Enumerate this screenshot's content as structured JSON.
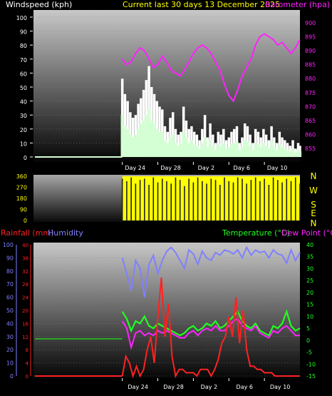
{
  "colors": {
    "wind_label": "#ffffff",
    "wind_gust": "#ffffff",
    "wind_avg": "#d4ffd4",
    "barometer": "#ff22ff",
    "title": "#ffff00",
    "direction": "#ffff00",
    "direction_letters": "#ffff00",
    "rainfall": "#ff2222",
    "humidity": "#8080ff",
    "temperature": "#22ff22",
    "dewpoint": "#ff22ff",
    "old_temp": "#22cc22"
  },
  "x_axis": {
    "start_day": 1,
    "end_day": 31,
    "ticks": [
      {
        "day": 11,
        "label": "Day 24"
      },
      {
        "day": 15,
        "label": "Day 28"
      },
      {
        "day": 19,
        "label": "Day 2"
      },
      {
        "day": 23,
        "label": "Day 6"
      },
      {
        "day": 27,
        "label": "Day 10"
      }
    ],
    "data_start_day": 11
  },
  "chart_data": [
    {
      "type": "area",
      "name": "wind-and-barometer",
      "title": "Current last 30 days 13 December 2025",
      "ylabel": "Windspeed (kph)",
      "ylabel_right": "Barometer (hpa)",
      "ylim": [
        0,
        100
      ],
      "yticks": [
        0,
        10,
        20,
        30,
        40,
        50,
        60,
        70,
        80,
        90,
        100
      ],
      "ylim_right": [
        852,
        902
      ],
      "yticks_right": [
        855,
        860,
        865,
        870,
        875,
        880,
        885,
        890,
        895,
        900
      ],
      "series": [
        {
          "name": "Gust",
          "x": [
            11.0,
            11.3,
            11.6,
            11.9,
            12.2,
            12.5,
            12.8,
            13.1,
            13.4,
            13.7,
            14.0,
            14.3,
            14.6,
            14.9,
            15.2,
            15.5,
            15.8,
            16.1,
            16.4,
            16.7,
            17.0,
            17.3,
            17.6,
            17.9,
            18.2,
            18.5,
            18.8,
            19.1,
            19.4,
            19.7,
            20.0,
            20.3,
            20.6,
            20.9,
            21.2,
            21.5,
            21.8,
            22.1,
            22.4,
            22.7,
            23.0,
            23.3,
            23.6,
            23.9,
            24.2,
            24.5,
            24.8,
            25.1,
            25.4,
            25.7,
            26.0,
            26.3,
            26.6,
            26.9,
            27.2,
            27.5,
            27.8,
            28.1,
            28.4,
            28.7,
            29.0,
            29.3,
            29.6,
            29.9,
            30.2,
            30.5,
            30.8,
            31.0
          ],
          "values": [
            56,
            45,
            40,
            32,
            28,
            30,
            38,
            42,
            48,
            55,
            65,
            50,
            45,
            40,
            36,
            34,
            22,
            18,
            28,
            32,
            20,
            16,
            18,
            36,
            26,
            20,
            22,
            18,
            16,
            12,
            20,
            30,
            14,
            24,
            16,
            10,
            18,
            16,
            20,
            12,
            14,
            18,
            20,
            22,
            10,
            14,
            24,
            22,
            16,
            10,
            20,
            18,
            14,
            20,
            16,
            12,
            22,
            14,
            10,
            18,
            14,
            12,
            10,
            8,
            12,
            6,
            10,
            8
          ]
        },
        {
          "name": "Average",
          "x": [
            11.0,
            11.3,
            11.6,
            11.9,
            12.2,
            12.5,
            12.8,
            13.1,
            13.4,
            13.7,
            14.0,
            14.3,
            14.6,
            14.9,
            15.2,
            15.5,
            15.8,
            16.1,
            16.4,
            16.7,
            17.0,
            17.3,
            17.6,
            17.9,
            18.2,
            18.5,
            18.8,
            19.1,
            19.4,
            19.7,
            20.0,
            20.3,
            20.6,
            20.9,
            21.2,
            21.5,
            21.8,
            22.1,
            22.4,
            22.7,
            23.0,
            23.3,
            23.6,
            23.9,
            24.2,
            24.5,
            24.8,
            25.1,
            25.4,
            25.7,
            26.0,
            26.3,
            26.6,
            26.9,
            27.2,
            27.5,
            27.8,
            28.1,
            28.4,
            28.7,
            29.0,
            29.3,
            29.6,
            29.9,
            30.2,
            30.5,
            30.8,
            31.0
          ],
          "values": [
            30,
            22,
            20,
            16,
            14,
            16,
            20,
            24,
            26,
            30,
            34,
            26,
            24,
            20,
            18,
            18,
            12,
            10,
            14,
            16,
            10,
            8,
            10,
            18,
            14,
            10,
            12,
            9,
            8,
            6,
            10,
            14,
            7,
            12,
            8,
            5,
            9,
            8,
            10,
            6,
            7,
            9,
            10,
            11,
            5,
            7,
            12,
            11,
            8,
            5,
            10,
            9,
            7,
            10,
            8,
            6,
            11,
            7,
            5,
            9,
            7,
            6,
            5,
            4,
            6,
            3,
            5,
            4
          ]
        },
        {
          "name": "Pressure",
          "x": [
            11.0,
            11.5,
            12.0,
            12.5,
            13.0,
            13.5,
            14.0,
            14.5,
            15.0,
            15.5,
            16.0,
            16.5,
            17.0,
            17.5,
            18.0,
            18.5,
            19.0,
            19.5,
            20.0,
            20.5,
            21.0,
            21.5,
            22.0,
            22.5,
            23.0,
            23.5,
            24.0,
            24.5,
            25.0,
            25.5,
            26.0,
            26.5,
            27.0,
            27.5,
            28.0,
            28.5,
            29.0,
            29.5,
            30.0,
            30.5,
            31.0
          ],
          "values": [
            887,
            885,
            886,
            889,
            891,
            890,
            887,
            884,
            885,
            888,
            886,
            883,
            882,
            881,
            883,
            886,
            889,
            891,
            892,
            891,
            889,
            886,
            883,
            878,
            874,
            872,
            876,
            881,
            884,
            887,
            892,
            895,
            896,
            895,
            894,
            892,
            893,
            891,
            889,
            891,
            894
          ]
        }
      ]
    },
    {
      "type": "bar",
      "name": "wind-direction",
      "ylim": [
        0,
        360
      ],
      "yticks": [
        0,
        90,
        180,
        270,
        360
      ],
      "direction_labels": [
        "N",
        "W",
        "S",
        "E",
        "N"
      ],
      "series": [
        {
          "name": "Direction",
          "x": [
            11.0,
            11.5,
            12.0,
            12.5,
            13.0,
            13.5,
            14.0,
            14.5,
            15.0,
            15.5,
            16.0,
            16.5,
            17.0,
            17.5,
            18.0,
            18.5,
            19.0,
            19.5,
            20.0,
            20.5,
            21.0,
            21.5,
            22.0,
            22.5,
            23.0,
            23.5,
            24.0,
            24.5,
            25.0,
            25.5,
            26.0,
            26.5,
            27.0,
            27.5,
            28.0,
            28.5,
            29.0,
            29.5,
            30.0,
            30.5,
            31.0
          ],
          "values": [
            340,
            320,
            350,
            300,
            330,
            340,
            290,
            350,
            310,
            340,
            320,
            300,
            350,
            330,
            280,
            340,
            310,
            350,
            320,
            300,
            340,
            330,
            290,
            350,
            320,
            310,
            350,
            340,
            300,
            330,
            350,
            320,
            340,
            290,
            350,
            330,
            310,
            340,
            320,
            350,
            300
          ]
        }
      ]
    },
    {
      "type": "line",
      "name": "temperature-humidity-rain",
      "ylabel": "Rainfall (mm)",
      "ylabel_humidity": "Humidity",
      "ylabel_right": "Temperature (°C)",
      "ylabel_right2": "Dew Point (°C)",
      "ylim_humidity": [
        0,
        100
      ],
      "yticks_humidity": [
        0,
        10,
        20,
        30,
        40,
        50,
        60,
        70,
        80,
        90,
        100
      ],
      "ylim_rain": [
        0,
        40
      ],
      "yticks_rain": [
        0,
        4,
        8,
        12,
        16,
        20,
        24,
        28,
        32,
        36,
        40
      ],
      "ylim_temp": [
        -15,
        40
      ],
      "yticks_temp": [
        -15,
        -10,
        -5,
        0,
        5,
        10,
        15,
        20,
        25,
        30,
        35,
        40
      ],
      "series": [
        {
          "name": "Humidity",
          "x": [
            11.0,
            11.5,
            12.0,
            12.5,
            13.0,
            13.5,
            14.0,
            14.5,
            15.0,
            15.5,
            16.0,
            16.5,
            17.0,
            17.5,
            18.0,
            18.5,
            19.0,
            19.5,
            20.0,
            20.5,
            21.0,
            21.5,
            22.0,
            22.5,
            23.0,
            23.5,
            24.0,
            24.5,
            25.0,
            25.5,
            26.0,
            26.5,
            27.0,
            27.5,
            28.0,
            28.5,
            29.0,
            29.5,
            30.0,
            30.5,
            31.0
          ],
          "values": [
            90,
            78,
            65,
            88,
            82,
            60,
            85,
            92,
            78,
            88,
            95,
            98,
            94,
            88,
            82,
            96,
            93,
            85,
            95,
            90,
            88,
            94,
            92,
            96,
            95,
            93,
            96,
            90,
            98,
            92,
            96,
            94,
            95,
            90,
            96,
            93,
            92,
            86,
            96,
            88,
            94
          ]
        },
        {
          "name": "Temperature",
          "x": [
            11.0,
            11.5,
            12.0,
            12.5,
            13.0,
            13.5,
            14.0,
            14.5,
            15.0,
            15.5,
            16.0,
            16.5,
            17.0,
            17.5,
            18.0,
            18.5,
            19.0,
            19.5,
            20.0,
            20.5,
            21.0,
            21.5,
            22.0,
            22.5,
            23.0,
            23.5,
            24.0,
            24.5,
            25.0,
            25.5,
            26.0,
            26.5,
            27.0,
            27.5,
            28.0,
            28.5,
            29.0,
            29.5,
            30.0,
            30.5,
            31.0
          ],
          "values": [
            12,
            9,
            4,
            8,
            7,
            10,
            6,
            5,
            7,
            6,
            5,
            4,
            3,
            2,
            3,
            5,
            6,
            4,
            5,
            7,
            6,
            8,
            5,
            6,
            8,
            10,
            12,
            8,
            6,
            5,
            7,
            4,
            3,
            2,
            6,
            5,
            7,
            12,
            6,
            4,
            5
          ]
        },
        {
          "name": "Dew Point",
          "x": [
            11.0,
            11.5,
            12.0,
            12.5,
            13.0,
            13.5,
            14.0,
            14.5,
            15.0,
            15.5,
            16.0,
            16.5,
            17.0,
            17.5,
            18.0,
            18.5,
            19.0,
            19.5,
            20.0,
            20.5,
            21.0,
            21.5,
            22.0,
            22.5,
            23.0,
            23.5,
            24.0,
            24.5,
            25.0,
            25.5,
            26.0,
            26.5,
            27.0,
            27.5,
            28.0,
            28.5,
            29.0,
            29.5,
            30.0,
            30.5,
            31.0
          ],
          "values": [
            8,
            5,
            -3,
            3,
            4,
            2,
            3,
            2,
            4,
            3,
            4,
            3,
            2,
            1,
            1,
            3,
            4,
            2,
            4,
            5,
            4,
            6,
            4,
            4,
            6,
            8,
            9,
            6,
            5,
            4,
            6,
            3,
            2,
            1,
            4,
            3,
            5,
            6,
            4,
            2,
            2
          ]
        },
        {
          "name": "Rainfall",
          "x": [
            11.0,
            11.4,
            11.8,
            12.2,
            12.6,
            13.0,
            13.4,
            13.8,
            14.2,
            14.6,
            15.0,
            15.4,
            15.8,
            16.2,
            16.6,
            17.0,
            17.4,
            17.8,
            18.2,
            18.6,
            19.0,
            19.4,
            19.8,
            20.2,
            20.6,
            21.0,
            21.4,
            21.8,
            22.2,
            22.6,
            23.0,
            23.4,
            23.8,
            24.2,
            24.6,
            25.0,
            25.4,
            25.8,
            26.2,
            26.6,
            27.0,
            27.4,
            27.8,
            28.2,
            28.6,
            29.0,
            29.4,
            29.8,
            30.2,
            30.6,
            31.0
          ],
          "values": [
            0,
            6,
            4,
            0,
            3,
            0,
            2,
            8,
            12,
            4,
            18,
            30,
            12,
            22,
            6,
            0,
            2,
            2,
            1,
            1,
            1,
            0,
            2,
            2,
            2,
            0,
            2,
            5,
            10,
            12,
            18,
            12,
            24,
            10,
            20,
            8,
            3,
            3,
            2,
            2,
            1,
            1,
            1,
            0,
            0,
            0,
            0,
            0,
            0,
            0,
            0
          ]
        }
      ]
    }
  ]
}
